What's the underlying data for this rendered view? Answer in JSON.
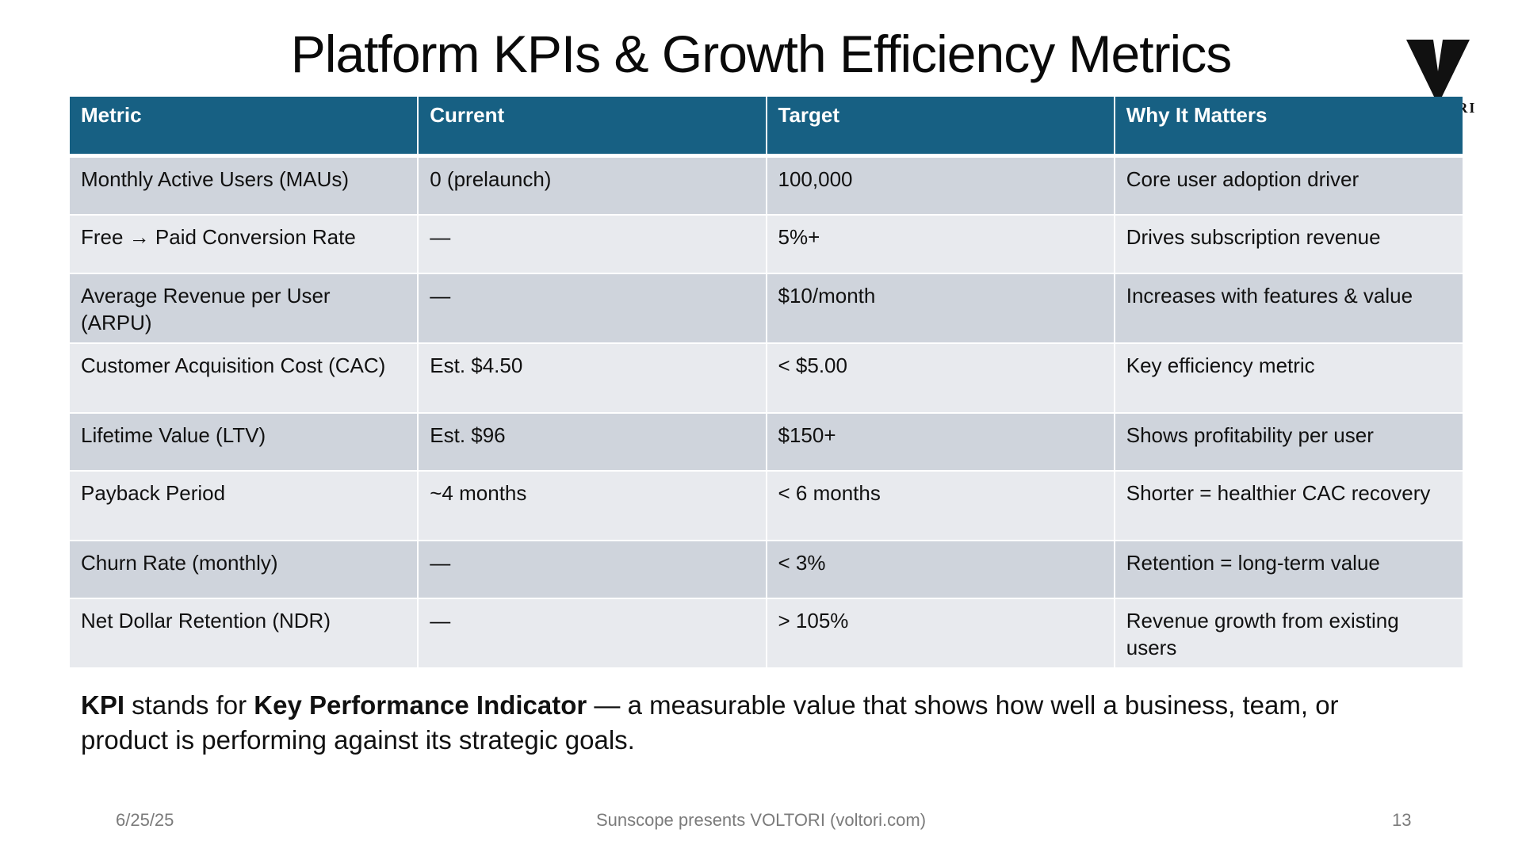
{
  "slide": {
    "title": "Platform KPIs & Growth Efficiency Metrics",
    "logo_text": "VOLTORI"
  },
  "table": {
    "headers": [
      "Metric",
      "Current",
      "Target",
      "Why It Matters"
    ],
    "rows": [
      [
        "Monthly Active Users (MAUs)",
        "0 (prelaunch)",
        "100,000",
        "Core user adoption driver"
      ],
      [
        "Free → Paid Conversion Rate",
        "—",
        "5%+",
        "Drives subscription revenue"
      ],
      [
        "Average Revenue per User (ARPU)",
        "—",
        "$10/month",
        "Increases with features & value"
      ],
      [
        "Customer Acquisition Cost (CAC)",
        "Est. $4.50",
        "< $5.00",
        "Key efficiency metric"
      ],
      [
        "Lifetime Value (LTV)",
        "Est. $96",
        "$150+",
        "Shows profitability per user"
      ],
      [
        "Payback Period",
        "~4 months",
        "< 6 months",
        "Shorter = healthier CAC recovery"
      ],
      [
        "Churn Rate (monthly)",
        "—",
        "< 3%",
        "Retention = long-term value"
      ],
      [
        "Net Dollar Retention (NDR)",
        "—",
        "> 105%",
        "Revenue growth from existing users"
      ]
    ]
  },
  "definition": {
    "term": "KPI",
    "connector": " stands for ",
    "expansion": "Key Performance Indicator",
    "rest": " — a measurable value that shows how well a business, team, or product is performing against its strategic goals."
  },
  "footer": {
    "date": "6/25/25",
    "center": "Sunscope presents VOLTORI (voltori.com)",
    "page_number": "13"
  },
  "colors": {
    "header_bg": "#176083",
    "row_dark": "#cfd4dc",
    "row_light": "#e8eaee"
  }
}
